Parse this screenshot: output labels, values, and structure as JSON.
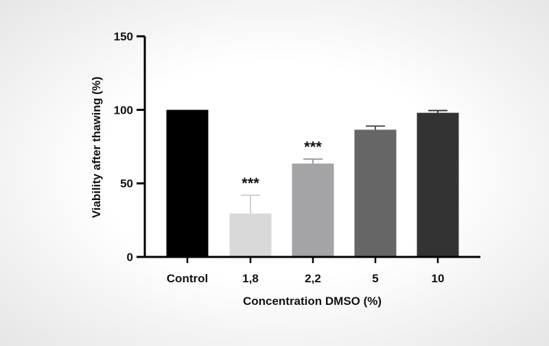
{
  "chart_data": {
    "type": "bar",
    "title": "",
    "xlabel": "Concentration DMSO (%)",
    "ylabel": "Viability after thawing (%)",
    "ylim": [
      0,
      150
    ],
    "yticks": [
      "0",
      "50",
      "100",
      "150"
    ],
    "categories": [
      "Control",
      "1,8",
      "2,2",
      "5",
      "10"
    ],
    "values": [
      100,
      29.5,
      63.5,
      86.5,
      98
    ],
    "errors": [
      0,
      12.5,
      3,
      2.5,
      1.5
    ],
    "significance": [
      "",
      "***",
      "***",
      "",
      ""
    ],
    "colors": [
      "#000000",
      "#d9d9d9",
      "#a4a4a6",
      "#666666",
      "#333333"
    ],
    "error_colors": [
      "#000000",
      "#d0d0d0",
      "#9a9a9c",
      "#555555",
      "#333333"
    ],
    "grid": false,
    "legend": "none"
  }
}
